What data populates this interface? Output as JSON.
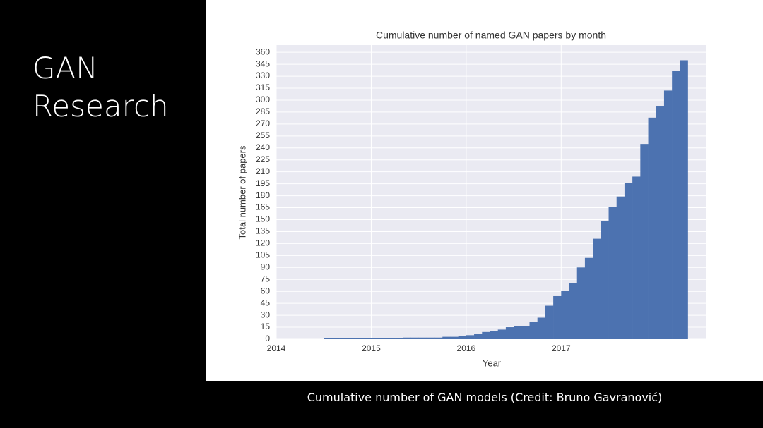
{
  "slide": {
    "title": "GAN Research",
    "caption": "Cumulative number of GAN models (Credit: Bruno Gavranović)"
  },
  "chart_data": {
    "type": "histogram",
    "title": "Cumulative number of named GAN papers by month",
    "x_label": "Year",
    "y_label": "Total number of papers",
    "bins": [
      2014.5,
      2014.5833,
      2014.6667,
      2014.75,
      2014.8333,
      2014.9167,
      2015,
      2015.0833,
      2015.1667,
      2015.25,
      2015.3333,
      2015.4167,
      2015.5,
      2015.5833,
      2015.6667,
      2015.75,
      2015.8333,
      2015.9167,
      2016,
      2016.0833,
      2016.1667,
      2016.25,
      2016.3333,
      2016.4167,
      2016.5,
      2016.5833,
      2016.6667,
      2016.75,
      2016.8333,
      2016.9167,
      2017,
      2017.0833,
      2017.1667,
      2017.25,
      2017.3333,
      2017.4167,
      2017.5,
      2017.5833,
      2017.6667,
      2017.75,
      2017.8333,
      2017.9167,
      2018,
      2018.0833,
      2018.1667,
      2018.25,
      2018.3333
    ],
    "values": [
      1,
      1,
      1,
      1,
      1,
      1,
      1,
      1,
      1,
      1,
      2,
      2,
      2,
      2,
      2,
      3,
      3,
      4,
      5,
      7,
      9,
      10,
      12,
      15,
      16,
      16,
      22,
      27,
      42,
      54,
      61,
      70,
      90,
      102,
      126,
      148,
      166,
      179,
      196,
      204,
      245,
      278,
      292,
      312,
      337,
      350
    ],
    "color": "#4c72b0",
    "background": "#eaeaf2",
    "grid": true,
    "xlim": [
      2014,
      2018.53
    ],
    "xticks": [
      2014,
      2015,
      2016,
      2017
    ],
    "ylim": [
      0,
      369
    ],
    "yticks": [
      0,
      15,
      30,
      45,
      60,
      75,
      90,
      105,
      120,
      135,
      150,
      165,
      180,
      195,
      210,
      225,
      240,
      255,
      270,
      285,
      300,
      315,
      330,
      345,
      360
    ]
  }
}
